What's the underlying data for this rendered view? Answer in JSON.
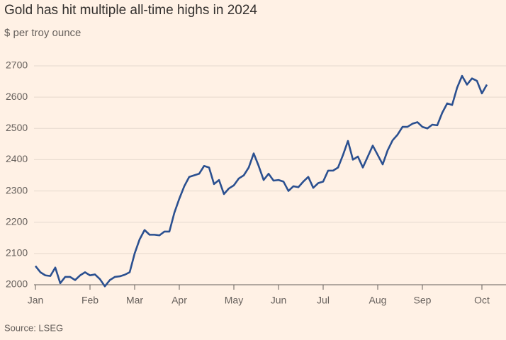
{
  "chart_data": {
    "type": "line",
    "title": "Gold has hit multiple all-time highs in 2024",
    "subtitle": "$ per troy ounce",
    "source": "Source: LSEG",
    "categories": [
      "Jan",
      null,
      null,
      null,
      null,
      null,
      null,
      null,
      null,
      null,
      null,
      "Feb",
      null,
      null,
      null,
      null,
      null,
      null,
      null,
      null,
      "Mar",
      null,
      null,
      null,
      null,
      null,
      null,
      null,
      null,
      "Apr",
      null,
      null,
      null,
      null,
      null,
      null,
      null,
      null,
      null,
      null,
      "May",
      null,
      null,
      null,
      null,
      null,
      null,
      null,
      null,
      "Jun",
      null,
      null,
      null,
      null,
      null,
      null,
      null,
      null,
      "Jul",
      null,
      null,
      null,
      null,
      null,
      null,
      null,
      null,
      null,
      null,
      "Aug",
      null,
      null,
      null,
      null,
      null,
      null,
      null,
      null,
      "Sep",
      null,
      null,
      null,
      null,
      null,
      null,
      null,
      null,
      null,
      null,
      null,
      "Oct",
      null
    ],
    "values": [
      2060,
      2040,
      2030,
      2028,
      2055,
      2005,
      2025,
      2025,
      2015,
      2030,
      2040,
      2030,
      2033,
      2018,
      1995,
      2015,
      2025,
      2027,
      2032,
      2040,
      2100,
      2145,
      2175,
      2160,
      2160,
      2158,
      2170,
      2170,
      2230,
      2275,
      2315,
      2345,
      2350,
      2355,
      2380,
      2375,
      2322,
      2335,
      2290,
      2308,
      2318,
      2340,
      2350,
      2375,
      2420,
      2380,
      2335,
      2355,
      2333,
      2335,
      2330,
      2300,
      2315,
      2312,
      2330,
      2345,
      2310,
      2325,
      2330,
      2365,
      2365,
      2375,
      2415,
      2460,
      2400,
      2410,
      2375,
      2410,
      2445,
      2415,
      2385,
      2430,
      2462,
      2480,
      2505,
      2505,
      2515,
      2520,
      2505,
      2500,
      2512,
      2510,
      2550,
      2580,
      2575,
      2630,
      2668,
      2640,
      2660,
      2652,
      2612,
      2640
    ],
    "color": "#2b5090",
    "ylim": [
      2000,
      2700
    ],
    "yticks": [
      2000,
      2100,
      2200,
      2300,
      2400,
      2500,
      2600,
      2700
    ],
    "grid": true
  }
}
